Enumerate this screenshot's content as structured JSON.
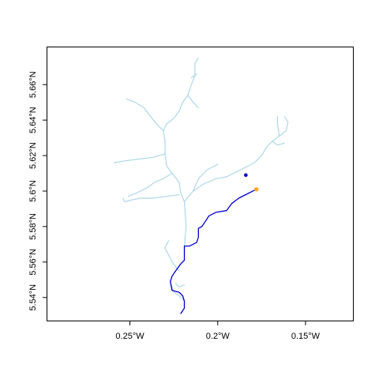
{
  "map": {
    "x_ticks": [
      {
        "value": -0.25,
        "label": "0.25°W"
      },
      {
        "value": -0.2,
        "label": "0.2°W"
      },
      {
        "value": -0.15,
        "label": "0.15°W"
      }
    ],
    "y_ticks": [
      {
        "value": 5.54,
        "label": "5.54°N"
      },
      {
        "value": 5.56,
        "label": "5.56°N"
      },
      {
        "value": 5.58,
        "label": "5.58°N"
      },
      {
        "value": 5.6,
        "label": "5.6°N"
      },
      {
        "value": 5.62,
        "label": "5.62°N"
      },
      {
        "value": 5.64,
        "label": "5.64°N"
      },
      {
        "value": 5.66,
        "label": "5.66°N"
      }
    ],
    "xlim": [
      -0.297,
      -0.123
    ],
    "ylim": [
      5.527,
      5.681
    ],
    "colors": {
      "river_network": "#add8e6",
      "flow_path": "#0000cd",
      "origin_point": "#ffa500",
      "target_point": "#0000cd",
      "frame": "#000000"
    },
    "river_network": [
      [
        [
          -0.221,
          5.531
        ],
        [
          -0.219,
          5.534
        ],
        [
          -0.219,
          5.538
        ],
        [
          -0.222,
          5.541
        ],
        [
          -0.225,
          5.543
        ],
        [
          -0.227,
          5.549
        ],
        [
          -0.226,
          5.552
        ],
        [
          -0.224,
          5.555
        ],
        [
          -0.221,
          5.559
        ],
        [
          -0.219,
          5.561
        ],
        [
          -0.219,
          5.569
        ],
        [
          -0.218,
          5.58
        ],
        [
          -0.219,
          5.594
        ],
        [
          -0.221,
          5.599
        ],
        [
          -0.222,
          5.605
        ],
        [
          -0.226,
          5.61
        ],
        [
          -0.229,
          5.614
        ],
        [
          -0.23,
          5.621
        ],
        [
          -0.23,
          5.628
        ],
        [
          -0.231,
          5.634
        ],
        [
          -0.229,
          5.638
        ],
        [
          -0.225,
          5.641
        ],
        [
          -0.222,
          5.645
        ],
        [
          -0.22,
          5.65
        ],
        [
          -0.217,
          5.654
        ],
        [
          -0.215,
          5.66
        ],
        [
          -0.213,
          5.665
        ],
        [
          -0.213,
          5.672
        ],
        [
          -0.211,
          5.675
        ]
      ],
      [
        [
          -0.217,
          5.654
        ],
        [
          -0.214,
          5.65
        ],
        [
          -0.211,
          5.647
        ]
      ],
      [
        [
          -0.215,
          5.664
        ],
        [
          -0.212,
          5.666
        ]
      ],
      [
        [
          -0.231,
          5.634
        ],
        [
          -0.235,
          5.638
        ],
        [
          -0.239,
          5.643
        ],
        [
          -0.242,
          5.647
        ],
        [
          -0.247,
          5.65
        ],
        [
          -0.252,
          5.652
        ]
      ],
      [
        [
          -0.23,
          5.621
        ],
        [
          -0.237,
          5.619
        ],
        [
          -0.245,
          5.618
        ],
        [
          -0.253,
          5.617
        ],
        [
          -0.259,
          5.616
        ]
      ],
      [
        [
          -0.226,
          5.61
        ],
        [
          -0.231,
          5.607
        ],
        [
          -0.236,
          5.605
        ],
        [
          -0.24,
          5.602
        ],
        [
          -0.246,
          5.599
        ],
        [
          -0.251,
          5.597
        ]
      ],
      [
        [
          -0.222,
          5.598
        ],
        [
          -0.229,
          5.597
        ],
        [
          -0.237,
          5.596
        ],
        [
          -0.244,
          5.596
        ],
        [
          -0.249,
          5.595
        ],
        [
          -0.253,
          5.594
        ],
        [
          -0.254,
          5.596
        ]
      ],
      [
        [
          -0.219,
          5.594
        ],
        [
          -0.214,
          5.6
        ],
        [
          -0.208,
          5.604
        ],
        [
          -0.201,
          5.607
        ],
        [
          -0.195,
          5.608
        ],
        [
          -0.189,
          5.611
        ],
        [
          -0.183,
          5.614
        ],
        [
          -0.179,
          5.616
        ],
        [
          -0.175,
          5.62
        ],
        [
          -0.172,
          5.625
        ],
        [
          -0.169,
          5.628
        ],
        [
          -0.165,
          5.631
        ],
        [
          -0.161,
          5.634
        ],
        [
          -0.16,
          5.639
        ],
        [
          -0.162,
          5.642
        ]
      ],
      [
        [
          -0.165,
          5.631
        ],
        [
          -0.166,
          5.638
        ],
        [
          -0.166,
          5.642
        ]
      ],
      [
        [
          -0.169,
          5.628
        ],
        [
          -0.166,
          5.626
        ],
        [
          -0.162,
          5.627
        ]
      ],
      [
        [
          -0.214,
          5.6
        ],
        [
          -0.211,
          5.607
        ],
        [
          -0.206,
          5.612
        ],
        [
          -0.2,
          5.615
        ]
      ],
      [
        [
          -0.222,
          5.555
        ],
        [
          -0.226,
          5.56
        ],
        [
          -0.228,
          5.564
        ],
        [
          -0.23,
          5.568
        ],
        [
          -0.228,
          5.572
        ]
      ],
      [
        [
          -0.224,
          5.548
        ],
        [
          -0.222,
          5.546
        ],
        [
          -0.219,
          5.547
        ]
      ]
    ],
    "flow_path": [
      [
        -0.178,
        5.601
      ],
      [
        -0.184,
        5.598
      ],
      [
        -0.188,
        5.596
      ],
      [
        -0.192,
        5.593
      ],
      [
        -0.195,
        5.589
      ],
      [
        -0.201,
        5.588
      ],
      [
        -0.205,
        5.586
      ],
      [
        -0.207,
        5.583
      ],
      [
        -0.209,
        5.58
      ],
      [
        -0.211,
        5.579
      ],
      [
        -0.211,
        5.574
      ],
      [
        -0.212,
        5.571
      ],
      [
        -0.216,
        5.569
      ],
      [
        -0.219,
        5.569
      ],
      [
        -0.219,
        5.564
      ],
      [
        -0.219,
        5.561
      ],
      [
        -0.221,
        5.559
      ],
      [
        -0.224,
        5.555
      ],
      [
        -0.226,
        5.552
      ],
      [
        -0.227,
        5.549
      ],
      [
        -0.226,
        5.544
      ],
      [
        -0.222,
        5.543
      ],
      [
        -0.22,
        5.541
      ],
      [
        -0.219,
        5.538
      ],
      [
        -0.219,
        5.534
      ],
      [
        -0.221,
        5.531
      ]
    ],
    "origin_point": {
      "lon": -0.178,
      "lat": 5.601
    },
    "target_point": {
      "lon": -0.184,
      "lat": 5.609
    }
  }
}
